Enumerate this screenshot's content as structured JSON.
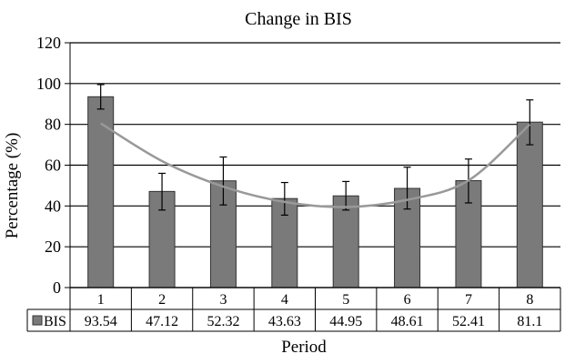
{
  "chart_data": {
    "type": "bar",
    "title": "Change in BIS",
    "xlabel": "Period",
    "ylabel": "Percentage (%)",
    "ylim": [
      0,
      120
    ],
    "yticks": [
      0,
      20,
      40,
      60,
      80,
      100,
      120
    ],
    "grid": true,
    "categories": [
      "1",
      "2",
      "3",
      "4",
      "5",
      "6",
      "7",
      "8"
    ],
    "series": [
      {
        "name": "BIS",
        "values": [
          93.54,
          47.12,
          52.32,
          43.63,
          44.95,
          48.61,
          52.41,
          81.1
        ],
        "value_labels": [
          "93.54",
          "47.12",
          "52.32",
          "43.63",
          "44.95",
          "48.61",
          "52.41",
          "81.1"
        ],
        "error_upper": [
          99.5,
          56,
          64,
          51.5,
          52,
          59,
          63,
          92
        ],
        "error_lower": [
          87.5,
          38,
          40.5,
          35.5,
          38,
          38.5,
          41.5,
          70
        ],
        "color": "#7a7a7a"
      }
    ],
    "trendline": {
      "type": "polynomial",
      "color": "#999999",
      "values": [
        80.5,
        62,
        49.5,
        42,
        39.5,
        43,
        52.5,
        80
      ]
    },
    "data_table": true
  }
}
